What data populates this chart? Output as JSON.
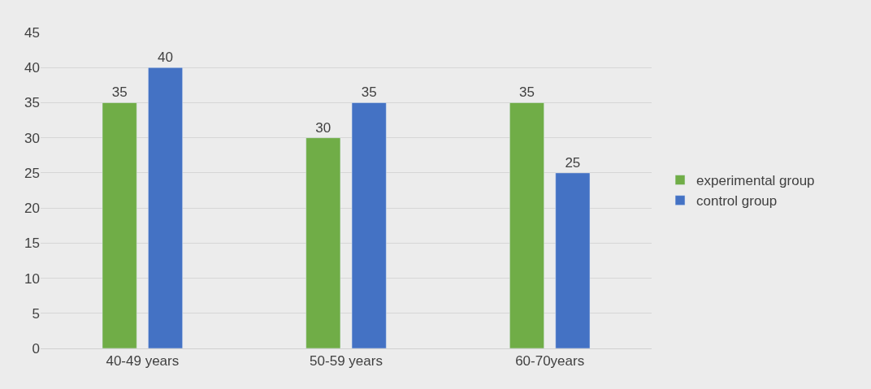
{
  "chart_data": {
    "type": "bar",
    "categories": [
      "40-49 years",
      "50-59 years",
      "60-70years"
    ],
    "series": [
      {
        "name": "experimental group",
        "color": "#70ad47",
        "values": [
          35,
          30,
          35
        ]
      },
      {
        "name": "control group",
        "color": "#4472c4",
        "values": [
          40,
          35,
          25
        ]
      }
    ],
    "ylim": [
      0,
      45
    ],
    "yticks": [
      0,
      5,
      10,
      15,
      20,
      25,
      30,
      35,
      40,
      45
    ],
    "grid": "y",
    "legend": "right",
    "data_labels": true
  }
}
